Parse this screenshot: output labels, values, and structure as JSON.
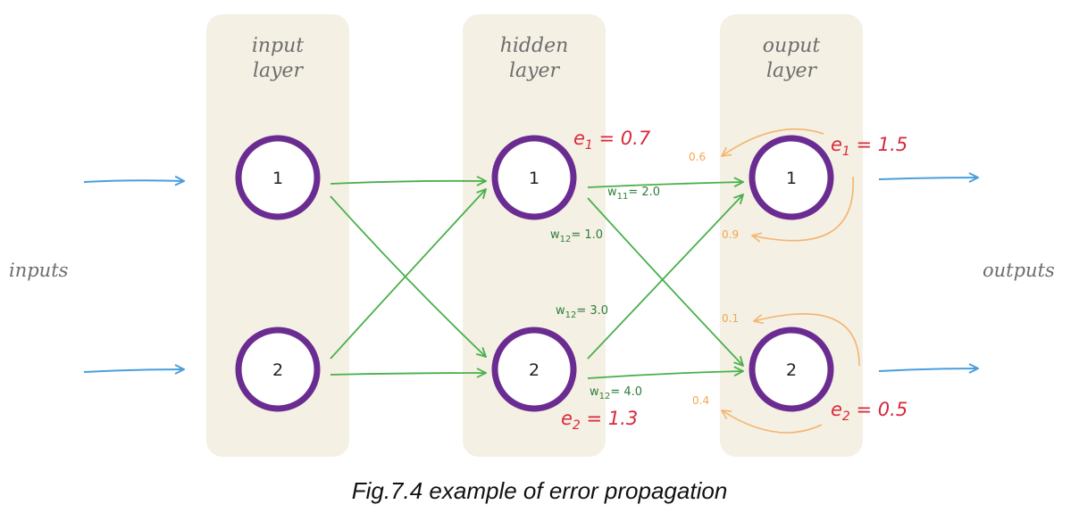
{
  "layers": {
    "input": {
      "title_line1": "input",
      "title_line2": "layer",
      "nodes": [
        "1",
        "2"
      ]
    },
    "hidden": {
      "title_line1": "hidden",
      "title_line2": "layer",
      "nodes": [
        "1",
        "2"
      ]
    },
    "output": {
      "title_line1": "ouput",
      "title_line2": "layer",
      "nodes": [
        "1",
        "2"
      ]
    }
  },
  "side_labels": {
    "inputs": "inputs",
    "outputs": "outputs"
  },
  "errors": {
    "hidden_1": {
      "letter": "e",
      "sub": "1",
      "rest": " = 0.7"
    },
    "hidden_2": {
      "letter": "e",
      "sub": "2",
      "rest": " = 1.3"
    },
    "output_1": {
      "letter": "e",
      "sub": "1",
      "rest": " = 1.5"
    },
    "output_2": {
      "letter": "e",
      "sub": "2",
      "rest": " = 0.5"
    }
  },
  "weights": {
    "w11": {
      "letter": "w",
      "sub": "11",
      "rest": "= 2.0"
    },
    "w12a": {
      "letter": "w",
      "sub": "12",
      "rest": "= 1.0"
    },
    "w12b": {
      "letter": "w",
      "sub": "12",
      "rest": "= 3.0"
    },
    "w12c": {
      "letter": "w",
      "sub": "12",
      "rest": "= 4.0"
    }
  },
  "fractions": {
    "f1": "0.6",
    "f2": "0.9",
    "f3": "0.1",
    "f4": "0.4"
  },
  "caption": "Fig.7.4 example of error propagation",
  "colors": {
    "panel": "#f4f0e4",
    "node_border": "#6a2c91",
    "input_arrow": "#4a9fdc",
    "connection": "#49b04b",
    "error_text": "#d8283a",
    "weight_text": "#2f7d3a",
    "fraction": "#f5b36d"
  }
}
